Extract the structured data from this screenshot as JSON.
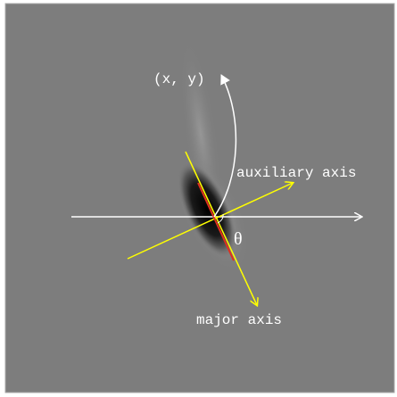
{
  "labels": {
    "point": "(x, y)",
    "auxiliary_axis": "auxiliary axis",
    "angle": "θ",
    "major_axis": "major axis"
  }
}
